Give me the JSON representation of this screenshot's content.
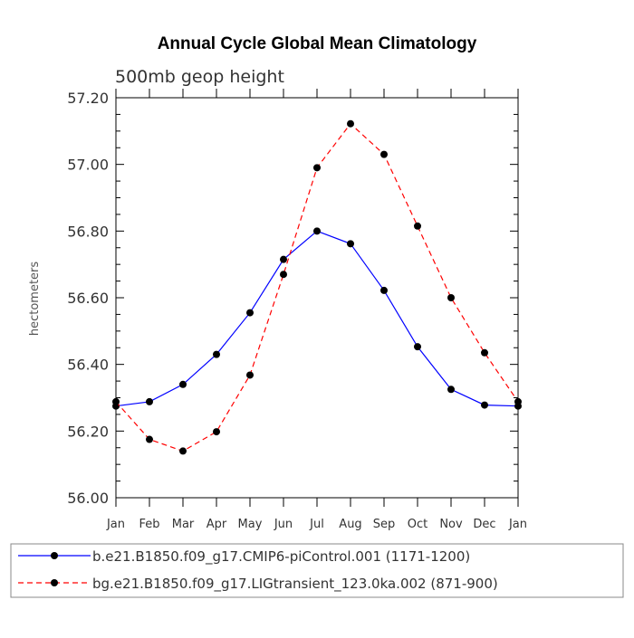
{
  "chart_data": {
    "type": "line",
    "title": "Annual Cycle Global Mean Climatology",
    "subtitle": "500mb geop height",
    "xlabel": "",
    "ylabel": "hectometers",
    "categories": [
      "Jan",
      "Feb",
      "Mar",
      "Apr",
      "May",
      "Jun",
      "Jul",
      "Aug",
      "Sep",
      "Oct",
      "Nov",
      "Dec",
      "Jan"
    ],
    "ylim": [
      56.0,
      57.2
    ],
    "yticks": [
      "56.00",
      "56.20",
      "56.40",
      "56.60",
      "56.80",
      "57.00",
      "57.20"
    ],
    "ytick_values": [
      56.0,
      56.2,
      56.4,
      56.6,
      56.8,
      57.0,
      57.2
    ],
    "series": [
      {
        "name": "b.e21.B1850.f09_g17.CMIP6-piControl.001 (1171-1200)",
        "color": "#0000ff",
        "dash": "solid",
        "values": [
          56.275,
          56.288,
          56.34,
          56.43,
          56.555,
          56.715,
          56.8,
          56.762,
          56.622,
          56.453,
          56.325,
          56.278,
          56.275
        ]
      },
      {
        "name": "bg.e21.B1850.f09_g17.LIGtransient_123.0ka.002 (871-900)",
        "color": "#ff0000",
        "dash": "dashed",
        "values": [
          56.288,
          56.175,
          56.14,
          56.198,
          56.368,
          56.67,
          56.99,
          57.122,
          57.03,
          56.815,
          56.6,
          56.435,
          56.288
        ]
      }
    ],
    "legend_position": "bottom",
    "grid": false
  }
}
